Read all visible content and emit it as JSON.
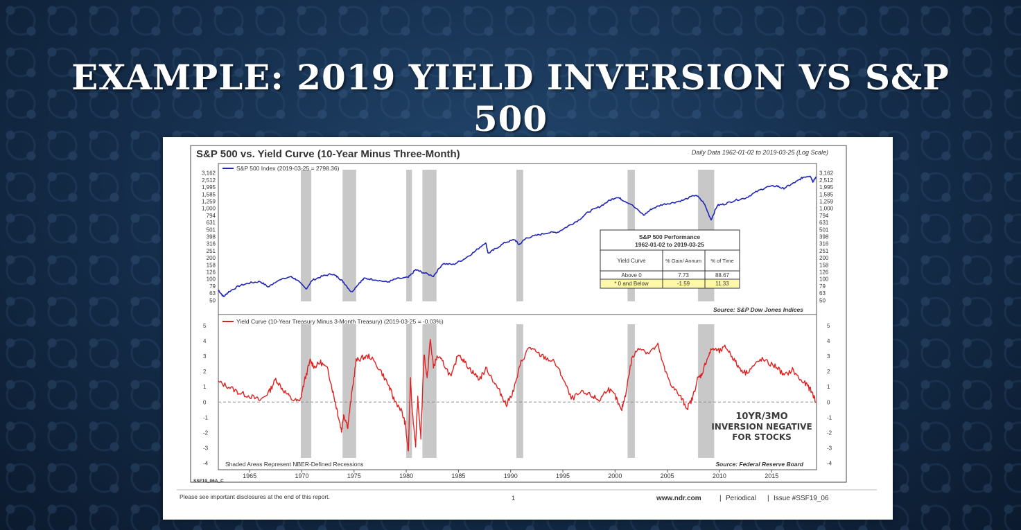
{
  "slide": {
    "title": "EXAMPLE: 2019 YIELD INVERSION VS S&P 500"
  },
  "colors": {
    "sp500": "#1f24b8",
    "yield": "#e02020",
    "recession": "#c8c8c8",
    "highlight": "#fff8a8"
  },
  "chart_data": [
    {
      "type": "line",
      "title": "S&P 500 vs. Yield Curve (10-Year Minus Three-Month)",
      "subtitle": "Daily Data 1962-01-02 to 2019-03-25 (Log Scale)",
      "legend": "S&P 500 Index (2019-03-25 = 2798.36)",
      "source": "Source:  S&P Dow Jones Indices",
      "yscale": "log",
      "ylim": [
        45,
        3600
      ],
      "xlim": [
        1962,
        2019.3
      ],
      "yticks": [
        "3,162",
        "2,512",
        "1,995",
        "1,585",
        "1,259",
        "1,000",
        "794",
        "631",
        "501",
        "398",
        "316",
        "251",
        "200",
        "158",
        "126",
        "100",
        "79",
        "63",
        "50"
      ],
      "series": [
        {
          "name": "S&P 500 Index",
          "x": [
            1962.0,
            1962.5,
            1963.0,
            1964.0,
            1965.0,
            1966.0,
            1966.8,
            1967.5,
            1968.9,
            1969.5,
            1970.4,
            1971.0,
            1972.0,
            1972.9,
            1973.5,
            1974.0,
            1974.75,
            1975.5,
            1976.0,
            1977.0,
            1978.2,
            1979.0,
            1980.2,
            1980.9,
            1981.5,
            1982.6,
            1983.5,
            1984.5,
            1985.5,
            1986.5,
            1987.6,
            1987.85,
            1988.5,
            1989.5,
            1990.4,
            1990.8,
            1991.5,
            1992.5,
            1993.5,
            1994.5,
            1995.5,
            1996.5,
            1997.5,
            1998.5,
            1999.5,
            2000.2,
            2000.7,
            2001.5,
            2002.75,
            2003.5,
            2004.5,
            2005.5,
            2006.5,
            2007.75,
            2008.5,
            2009.2,
            2009.8,
            2010.5,
            2011.5,
            2012.5,
            2013.5,
            2014.5,
            2015.5,
            2016.1,
            2016.8,
            2017.5,
            2018.0,
            2018.7,
            2018.95,
            2019.25
          ],
          "values": [
            70,
            56,
            66,
            80,
            88,
            92,
            77,
            92,
            108,
            98,
            72,
            96,
            110,
            118,
            105,
            90,
            65,
            88,
            102,
            98,
            90,
            100,
            105,
            135,
            125,
            110,
            165,
            160,
            190,
            240,
            330,
            230,
            265,
            330,
            360,
            305,
            380,
            415,
            450,
            460,
            560,
            680,
            900,
            1050,
            1300,
            1450,
            1320,
            1150,
            800,
            980,
            1130,
            1200,
            1300,
            1550,
            1200,
            690,
            1100,
            1150,
            1300,
            1400,
            1700,
            2000,
            2080,
            1900,
            2150,
            2450,
            2750,
            2900,
            2400,
            2800
          ]
        }
      ],
      "annotation": {
        "header": [
          "S&P 500 Performance",
          "1962-01-02 to 2019-03-25"
        ],
        "columns": [
          "Yield Curve",
          "% Gain/ Annum",
          "% of Time"
        ],
        "rows": [
          [
            "Above 0",
            "7.73",
            "88.67"
          ],
          [
            "* 0 and Below",
            "-1.59",
            "11.33"
          ]
        ]
      }
    },
    {
      "type": "line",
      "legend": "Yield Curve (10-Year Treasury Minus 3-Month Treasury) (2019-03-25 = -0.03%)",
      "note": "Shaded Areas Represent NBER-Defined Recessions",
      "source": "Source:  Federal Reserve Board",
      "ylim": [
        -4.2,
        5.4
      ],
      "yticks": [
        "5",
        "4",
        "3",
        "2",
        "1",
        "0",
        "-1",
        "-2",
        "-3",
        "-4"
      ],
      "callout": [
        "10YR/3MO",
        "INVERSION NEGATIVE",
        "FOR STOCKS"
      ],
      "series": [
        {
          "name": "Yield Curve",
          "x": [
            1962.0,
            1963.0,
            1964.0,
            1965.0,
            1966.0,
            1966.9,
            1967.5,
            1968.2,
            1969.0,
            1969.8,
            1970.3,
            1970.8,
            1971.2,
            1971.8,
            1972.5,
            1973.0,
            1973.4,
            1973.8,
            1974.0,
            1974.4,
            1974.75,
            1975.2,
            1975.8,
            1976.5,
            1977.5,
            1978.3,
            1978.8,
            1979.5,
            1979.9,
            1980.2,
            1980.4,
            1980.6,
            1980.9,
            1981.1,
            1981.4,
            1981.7,
            1982.0,
            1982.3,
            1982.6,
            1983.0,
            1983.6,
            1984.3,
            1985.0,
            1985.6,
            1986.3,
            1987.0,
            1987.7,
            1988.5,
            1989.1,
            1989.6,
            1990.3,
            1991.0,
            1991.8,
            1992.5,
            1993.3,
            1994.2,
            1995.0,
            1995.8,
            1996.8,
            1997.8,
            1998.5,
            1999.3,
            2000.0,
            2000.6,
            2001.0,
            2001.6,
            2002.3,
            2003.2,
            2004.1,
            2004.8,
            2005.5,
            2006.3,
            2006.9,
            2007.4,
            2007.9,
            2008.3,
            2008.8,
            2009.3,
            2010.0,
            2010.6,
            2011.2,
            2011.8,
            2012.5,
            2013.2,
            2014.0,
            2014.8,
            2015.5,
            2016.2,
            2017.0,
            2017.8,
            2018.4,
            2018.9,
            2019.25
          ],
          "values": [
            1.3,
            1.0,
            0.6,
            0.4,
            0.1,
            0.7,
            1.5,
            0.8,
            0.2,
            0.0,
            1.5,
            2.7,
            2.3,
            2.6,
            2.1,
            0.6,
            -0.6,
            -1.9,
            -0.8,
            -1.6,
            0.4,
            2.7,
            2.9,
            3.0,
            2.1,
            1.1,
            0.2,
            -0.5,
            -1.4,
            -3.3,
            1.5,
            -0.8,
            -2.8,
            0.2,
            -2.3,
            3.2,
            1.5,
            4.1,
            2.3,
            3.0,
            2.5,
            1.6,
            3.2,
            2.6,
            2.0,
            1.5,
            2.2,
            1.2,
            0.5,
            -0.2,
            0.8,
            2.6,
            3.6,
            3.2,
            2.9,
            2.6,
            1.6,
            0.2,
            0.6,
            0.4,
            0.1,
            0.9,
            0.4,
            -0.6,
            0.5,
            2.8,
            3.6,
            3.2,
            3.7,
            2.0,
            1.0,
            0.3,
            -0.4,
            0.2,
            1.5,
            1.8,
            2.8,
            3.5,
            3.3,
            3.6,
            3.0,
            2.3,
            1.9,
            2.3,
            2.8,
            2.5,
            2.3,
            1.7,
            2.1,
            1.4,
            1.1,
            0.6,
            -0.03
          ]
        }
      ]
    }
  ],
  "recessions": [
    [
      1969.9,
      1970.9
    ],
    [
      1973.9,
      1975.2
    ],
    [
      1980.0,
      1980.55
    ],
    [
      1981.55,
      1982.9
    ],
    [
      1990.55,
      1991.2
    ],
    [
      2001.2,
      2001.9
    ],
    [
      2007.95,
      2009.5
    ]
  ],
  "x_axis": {
    "ticks": [
      1965,
      1970,
      1975,
      1980,
      1985,
      1990,
      1995,
      2000,
      2005,
      2010,
      2015
    ]
  },
  "footer": {
    "code": "SSF19_06A_C",
    "disclosure": "Please see important disclosures at the end of this report.",
    "page": "1",
    "site": "www.ndr.com",
    "pipe1": "|",
    "periodical": "Periodical",
    "pipe2": "|",
    "issue": "Issue #SSF19_06"
  }
}
